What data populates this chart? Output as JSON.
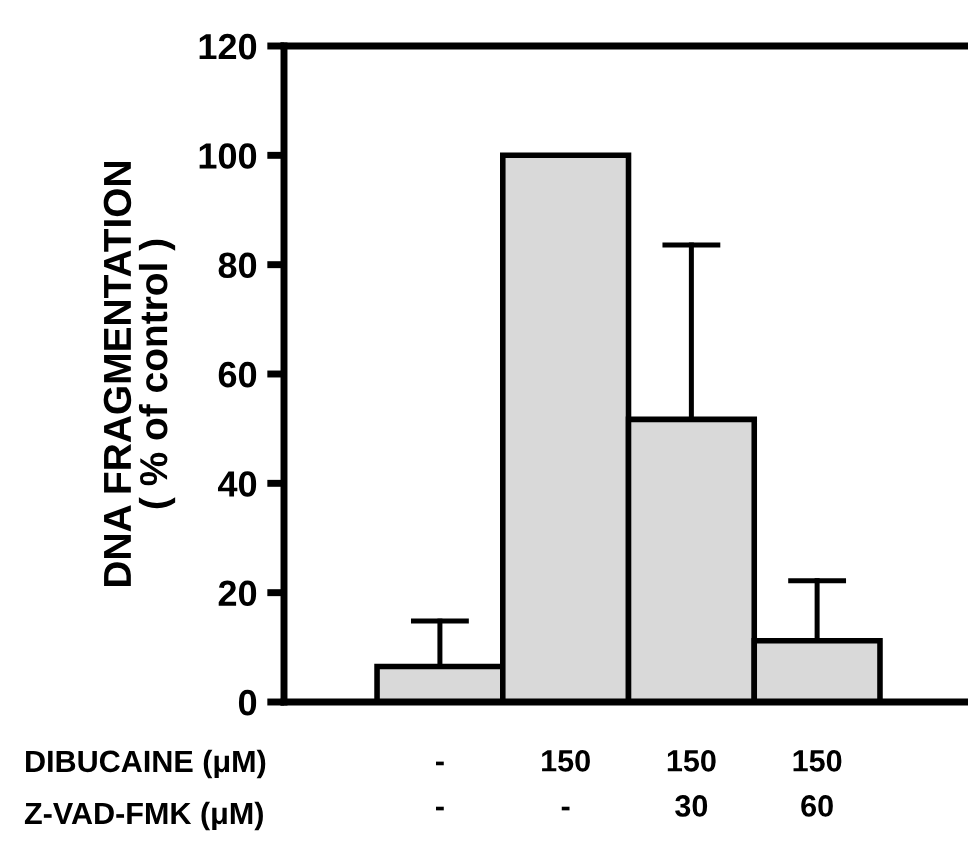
{
  "chart_data": {
    "type": "bar",
    "ylabel": "DNA FRAGMENTATION\n( % of control )",
    "categories": [
      "-\n-",
      "150\n-",
      "150\n30",
      "150\n60"
    ],
    "values": [
      6.5,
      100,
      51.7,
      11.2
    ],
    "errors": [
      [
        6.5,
        14.8
      ],
      null,
      [
        51.7,
        83.6
      ],
      [
        11.2,
        22.2
      ]
    ],
    "color": "#d9d9d9",
    "ylim": [
      0,
      120
    ],
    "yticks": [
      0,
      20,
      40,
      60,
      80,
      100,
      120
    ],
    "grid": false,
    "annotations": [
      "DIBUCAINE (μM)",
      "Z-VAD-FMK (μM)"
    ]
  }
}
